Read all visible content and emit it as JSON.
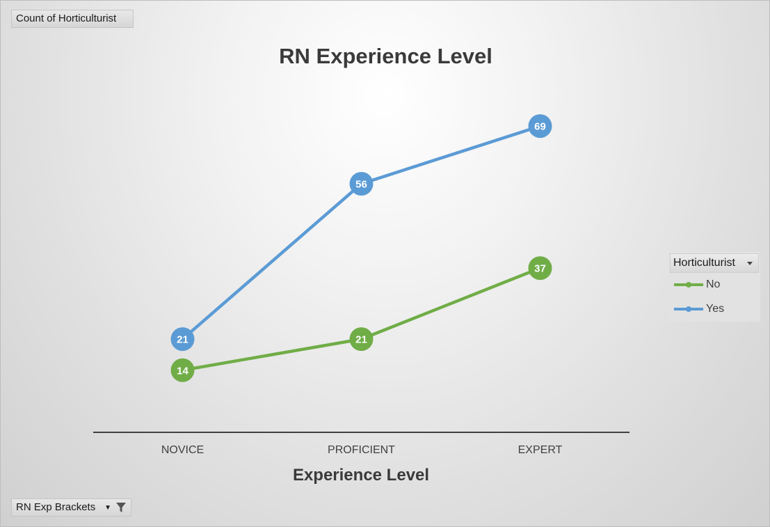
{
  "pivot": {
    "value_field": "Count of Horticulturist",
    "filter_field": "RN Exp Brackets",
    "legend_field": "Horticulturist"
  },
  "colors": {
    "No": "#70ad47",
    "Yes": "#5b9bd5",
    "axis": "#404040"
  },
  "icons": {
    "filter": "filter-funnel-icon",
    "dropdown": "chevron-down-icon"
  },
  "chart_data": {
    "type": "line",
    "title": "RN Experience Level",
    "xlabel": "Experience Level",
    "ylabel": "",
    "categories": [
      "NOVICE",
      "PROFICIENT",
      "EXPERT"
    ],
    "series": [
      {
        "name": "No",
        "values": [
          14,
          21,
          37
        ]
      },
      {
        "name": "Yes",
        "values": [
          21,
          56,
          69
        ]
      }
    ],
    "ylim": [
      0,
      80
    ],
    "grid": false,
    "legend_position": "right",
    "data_labels": true,
    "markers": "circle"
  }
}
